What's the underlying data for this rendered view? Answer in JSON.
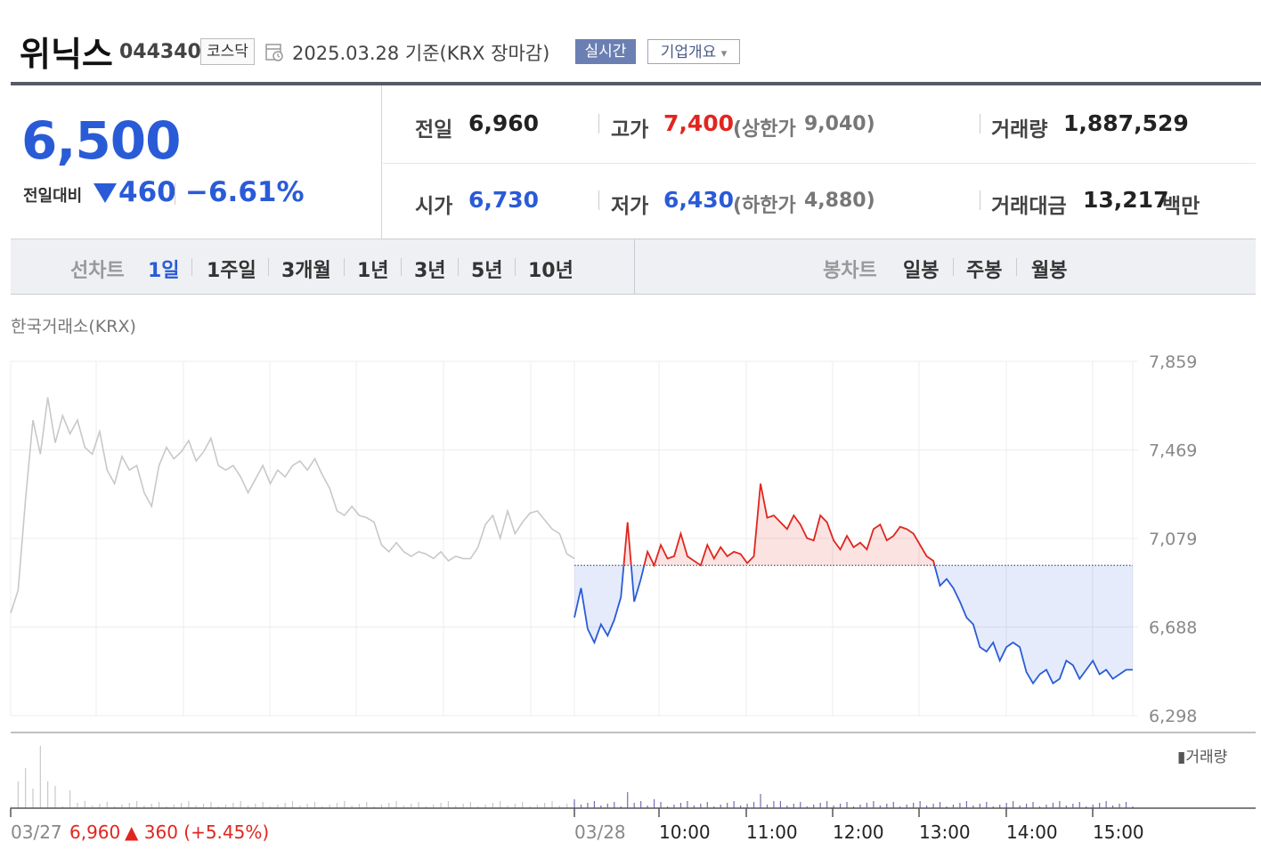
{
  "stock": {
    "name": "위닉스",
    "code": "044340",
    "market": "코스닥",
    "date": "2025.03.28 기준(KRX 장마감)",
    "realtime_label": "실시간",
    "overview_label": "기업개요",
    "overview_arrow": "▾"
  },
  "quote": {
    "price": "6,500",
    "compare_label": "전일대비",
    "change": "460",
    "change_pct": "−6.61%",
    "prev_label": "전일",
    "prev": "6,960",
    "high_label": "고가",
    "high": "7,400",
    "upper_label": "(상한가",
    "upper": "9,040)",
    "volume_label": "거래량",
    "volume": "1,887,529",
    "open_label": "시가",
    "open": "6,730",
    "low_label": "저가",
    "low": "6,430",
    "lower_label": "(하한가",
    "lower": "4,880)",
    "amount_label": "거래대금",
    "amount": "13,217",
    "amount_unit": "백만"
  },
  "tabs": {
    "line_chart_label": "선차트",
    "periods": [
      "1일",
      "1주일",
      "3개월",
      "1년",
      "3년",
      "5년",
      "10년"
    ],
    "active": "1일",
    "candle_chart_label": "봉차트",
    "candles": [
      "일봉",
      "주봉",
      "월봉"
    ]
  },
  "source_label": "한국거래소(KRX)",
  "colors": {
    "up": "#e0261f",
    "down": "#2a5bd7",
    "prev_day": "#c8c8c8",
    "volume": "#7b6bb5",
    "accent_bar": "#6b7fb3"
  },
  "chart_data": {
    "type": "line",
    "ylim": [
      6298,
      7859
    ],
    "yticks": [
      "7,859",
      "7,469",
      "7,079",
      "6,688",
      "6,298"
    ],
    "baseline": 6960,
    "volume_legend": "거래량",
    "prev_day_label": "03/27",
    "prev_day_close": "6,960",
    "prev_day_change": "▲ 360 (+5.45%)",
    "x_labels": [
      "03/28",
      "10:00",
      "11:00",
      "12:00",
      "13:00",
      "14:00",
      "15:00"
    ],
    "series": [
      {
        "name": "03/27",
        "values": [
          6750,
          6850,
          7250,
          7600,
          7450,
          7700,
          7500,
          7620,
          7540,
          7600,
          7480,
          7450,
          7550,
          7380,
          7320,
          7440,
          7380,
          7400,
          7280,
          7220,
          7400,
          7480,
          7430,
          7460,
          7510,
          7420,
          7460,
          7520,
          7400,
          7380,
          7400,
          7350,
          7280,
          7340,
          7400,
          7320,
          7380,
          7350,
          7400,
          7420,
          7380,
          7430,
          7360,
          7300,
          7200,
          7180,
          7220,
          7180,
          7170,
          7150,
          7050,
          7020,
          7060,
          7020,
          7000,
          7020,
          7010,
          6990,
          7020,
          6980,
          7000,
          6990,
          6990,
          7040,
          7140,
          7180,
          7080,
          7200,
          7100,
          7150,
          7190,
          7200,
          7160,
          7120,
          7100,
          7010,
          6990
        ]
      },
      {
        "name": "03/28",
        "values": [
          6730,
          6860,
          6680,
          6620,
          6700,
          6650,
          6720,
          6820,
          7150,
          6800,
          6900,
          7020,
          6960,
          7050,
          6990,
          7000,
          7100,
          7000,
          6980,
          6960,
          7050,
          6990,
          7040,
          7000,
          7020,
          7010,
          6970,
          7000,
          7320,
          7170,
          7180,
          7150,
          7120,
          7180,
          7140,
          7080,
          7070,
          7180,
          7150,
          7070,
          7030,
          7090,
          7040,
          7060,
          7030,
          7120,
          7140,
          7070,
          7090,
          7130,
          7120,
          7100,
          7050,
          7000,
          6980,
          6870,
          6900,
          6860,
          6800,
          6730,
          6700,
          6600,
          6580,
          6620,
          6540,
          6600,
          6620,
          6600,
          6490,
          6440,
          6480,
          6500,
          6440,
          6460,
          6540,
          6520,
          6460,
          6500,
          6540,
          6480,
          6500,
          6460,
          6480,
          6500,
          6500
        ]
      }
    ]
  }
}
